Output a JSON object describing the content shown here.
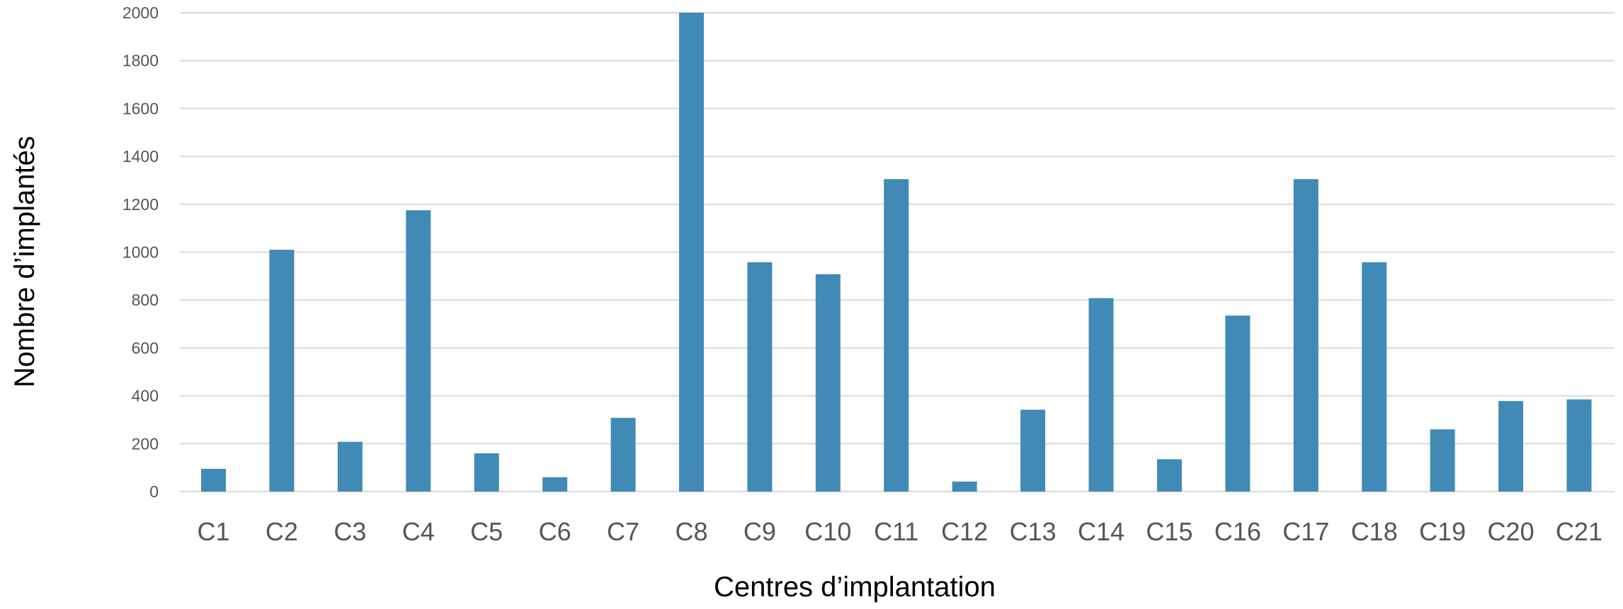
{
  "chart_data": {
    "type": "bar",
    "xlabel": "Centres d’implantation",
    "ylabel": "Nombre d’implantés",
    "ylim": [
      0,
      2000
    ],
    "yticks": [
      0,
      200,
      400,
      600,
      800,
      1000,
      1200,
      1400,
      1600,
      1800,
      2000
    ],
    "grid": true,
    "bar_color": "#418ab6",
    "categories": [
      "C1",
      "C2",
      "C3",
      "C4",
      "C5",
      "C6",
      "C7",
      "C8",
      "C9",
      "C10",
      "C11",
      "C12",
      "C13",
      "C14",
      "C15",
      "C16",
      "C17",
      "C18",
      "C19",
      "C20",
      "C21"
    ],
    "values": [
      95,
      1010,
      208,
      1175,
      160,
      60,
      308,
      2000,
      958,
      908,
      1305,
      42,
      342,
      808,
      135,
      735,
      1305,
      958,
      260,
      378,
      385
    ]
  }
}
